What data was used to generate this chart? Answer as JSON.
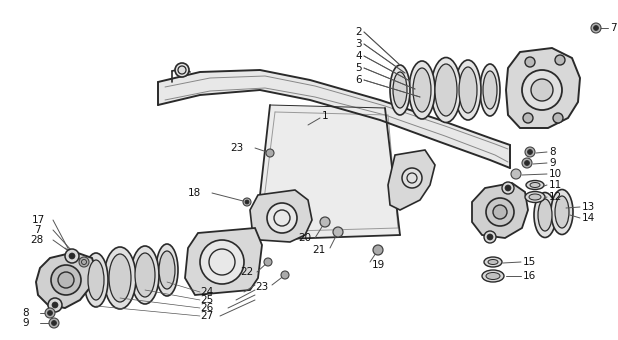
{
  "bg_color": "#ffffff",
  "line_color": "#2a2a2a",
  "fill_light": "#d8d8d8",
  "fill_mid": "#c0c0c0",
  "leader_color": "#555555",
  "label_color": "#111111",
  "fig_width": 6.18,
  "fig_height": 3.4,
  "dpi": 100
}
